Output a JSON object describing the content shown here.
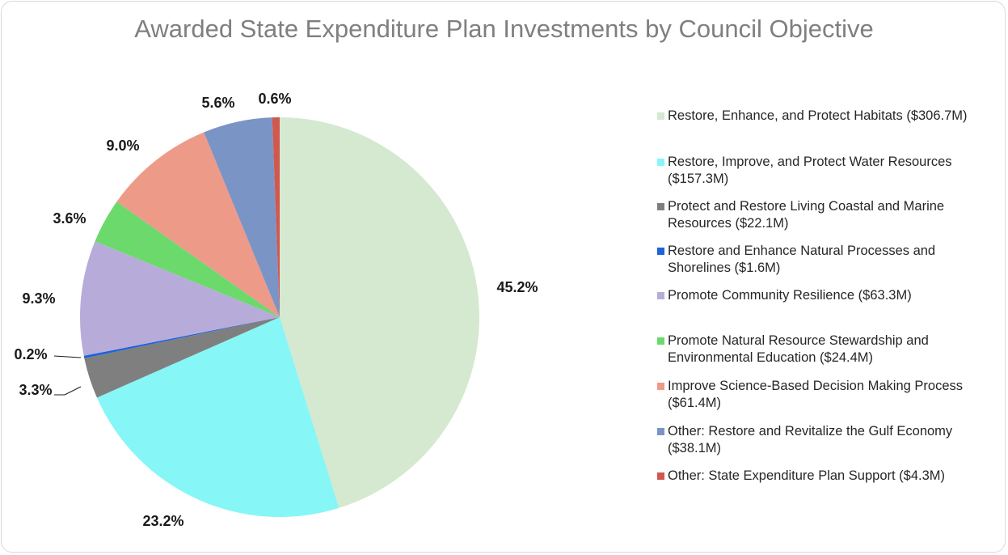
{
  "chart_data": {
    "type": "pie",
    "title": "Awarded State Expenditure Plan Investments by Council Objective",
    "slices": [
      {
        "label": "Restore, Enhance, and Protect Habitats ($306.7M)",
        "value": 45.2,
        "pct_label": "45.2%",
        "color": "#d5e8d0"
      },
      {
        "label": "Restore, Improve, and Protect Water Resources ($157.3M)",
        "value": 23.2,
        "pct_label": "23.2%",
        "color": "#86f6f6"
      },
      {
        "label": "Protect and Restore Living Coastal and Marine Resources ($22.1M)",
        "value": 3.3,
        "pct_label": "3.3%",
        "color": "#7f7f7f"
      },
      {
        "label": "Restore and Enhance Natural Processes and Shorelines ($1.6M)",
        "value": 0.2,
        "pct_label": "0.2%",
        "color": "#1f63d8"
      },
      {
        "label": "Promote Community Resilience ($63.3M)",
        "value": 9.3,
        "pct_label": "9.3%",
        "color": "#b7acd9"
      },
      {
        "label": "Promote Natural Resource Stewardship and Environmental Education ($24.4M)",
        "value": 3.6,
        "pct_label": "3.6%",
        "color": "#6cd96c"
      },
      {
        "label": "Improve Science-Based Decision Making Process ($61.4M)",
        "value": 9.0,
        "pct_label": "9.0%",
        "color": "#ed9a88"
      },
      {
        "label": "Other: Restore and Revitalize the Gulf Economy ($38.1M)",
        "value": 5.6,
        "pct_label": "5.6%",
        "color": "#7b94c6"
      },
      {
        "label": "Other: State Expenditure Plan Support ($4.3M)",
        "value": 0.6,
        "pct_label": "0.6%",
        "color": "#d0584f"
      }
    ],
    "legend_position": "right"
  }
}
